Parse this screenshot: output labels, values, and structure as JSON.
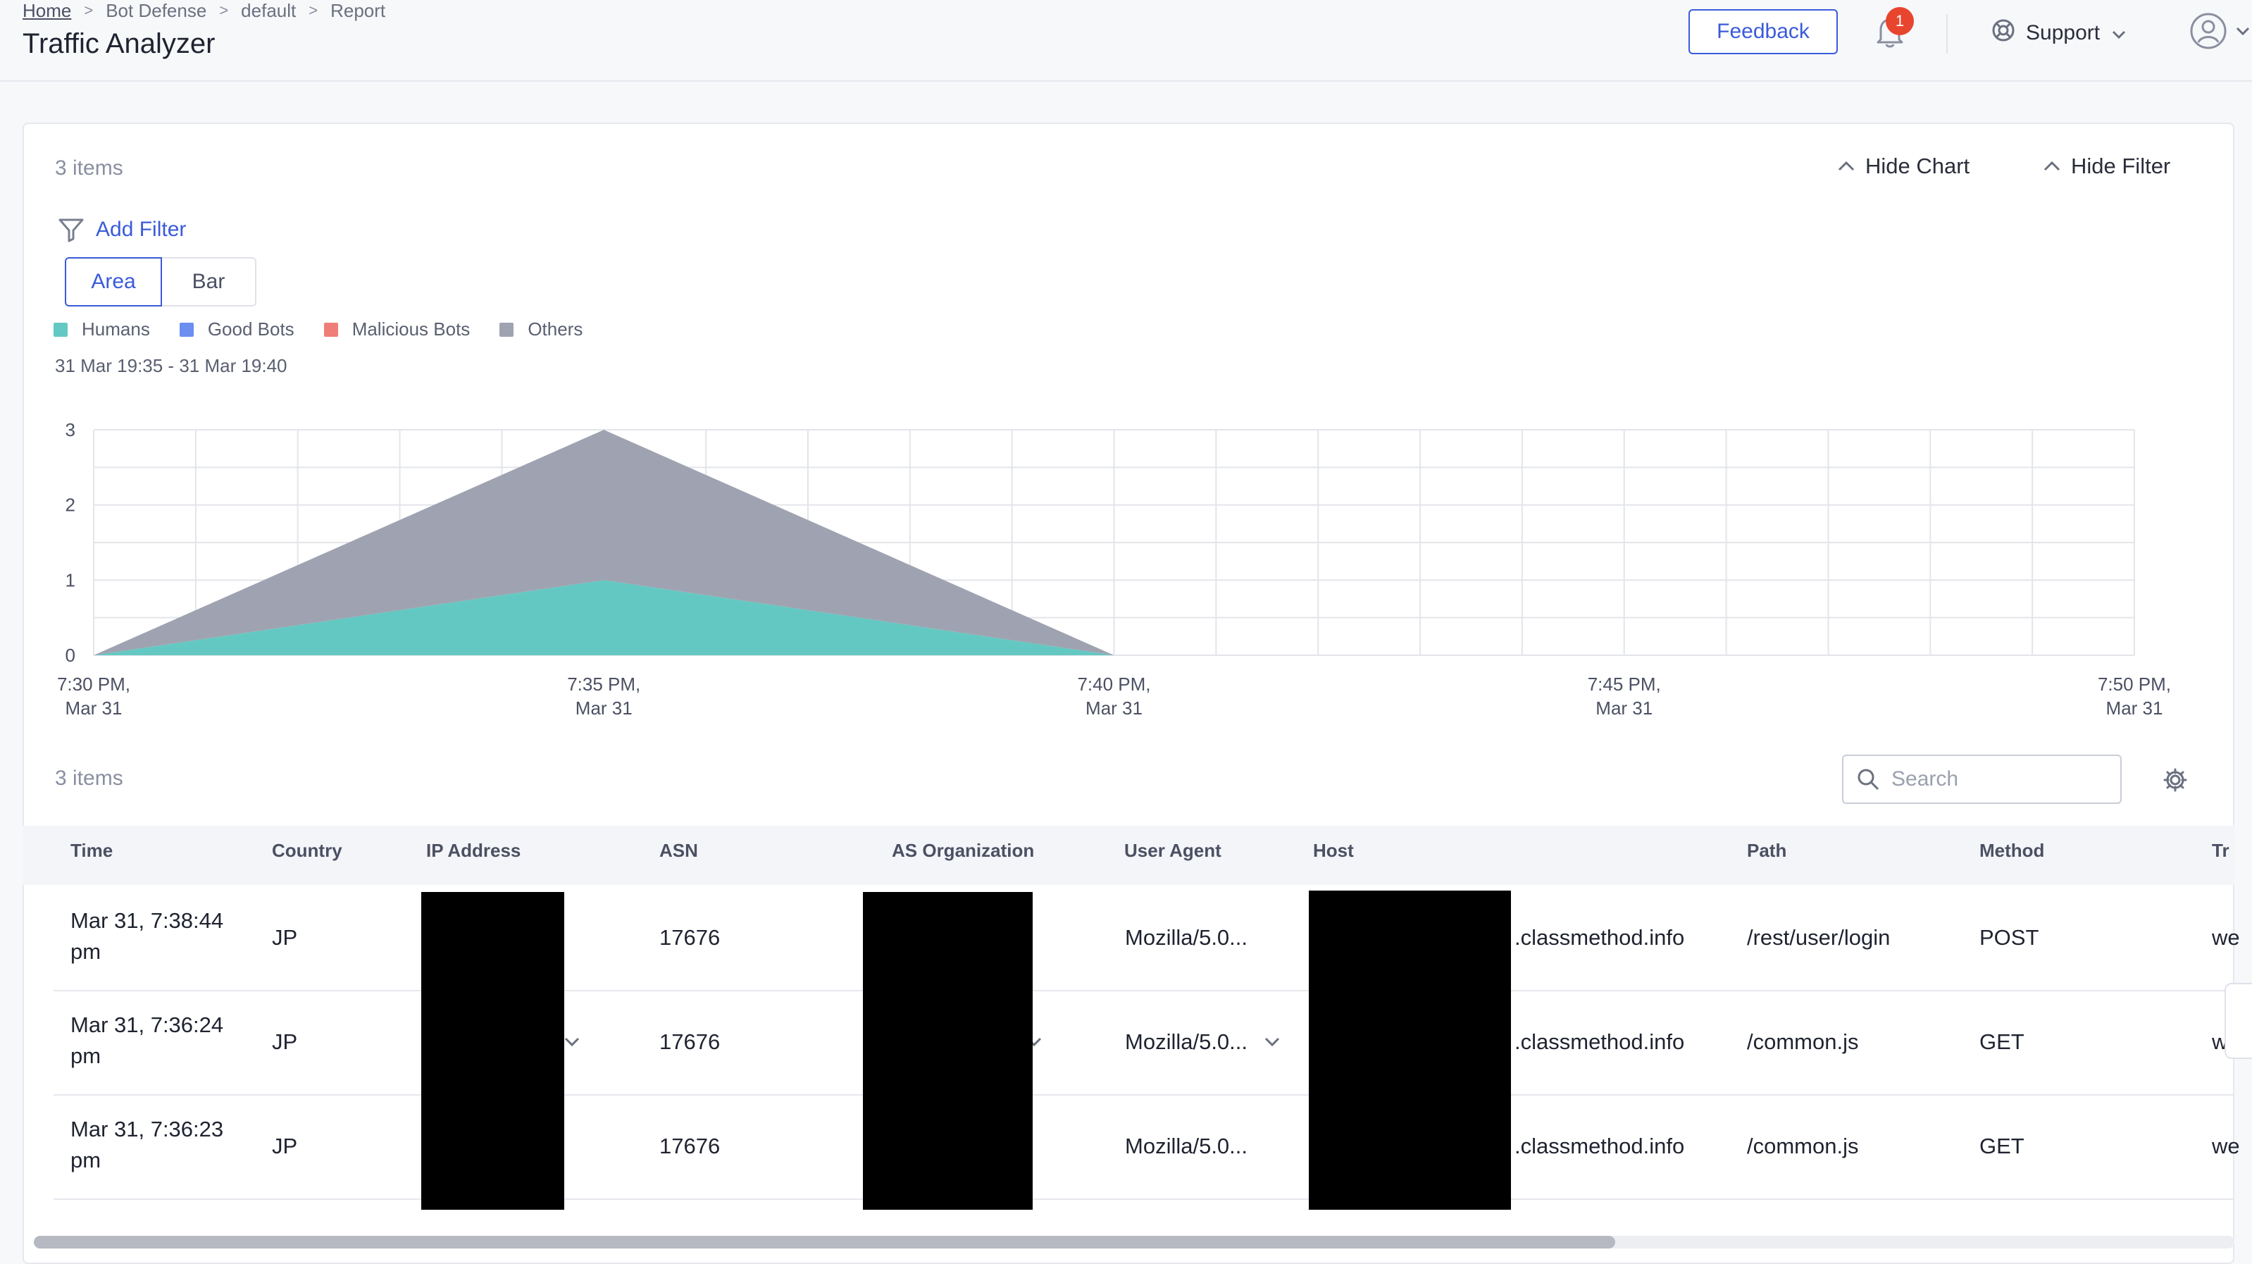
{
  "breadcrumb": [
    "Home",
    "Bot Defense",
    "default",
    "Report"
  ],
  "page_title": "Traffic Analyzer",
  "header": {
    "feedback_label": "Feedback",
    "notification_count": "1",
    "support_label": "Support"
  },
  "panel": {
    "items_count_top": "3 items",
    "hide_chart_label": "Hide Chart",
    "hide_filter_label": "Hide Filter",
    "add_filter_label": "Add Filter",
    "view_toggle": [
      "Area",
      "Bar"
    ],
    "view_selected": "Area",
    "date_range": "31 Mar 19:35 - 31 Mar 19:40"
  },
  "chart_data": {
    "type": "area",
    "stacked": true,
    "x": [
      "7:30 PM",
      "7:35 PM",
      "7:40 PM",
      "7:45 PM",
      "7:50 PM"
    ],
    "x_tick_labels": [
      [
        "7:30 PM,",
        "Mar 31"
      ],
      [
        "7:35 PM,",
        "Mar 31"
      ],
      [
        "7:40 PM,",
        "Mar 31"
      ],
      [
        "7:45 PM,",
        "Mar 31"
      ],
      [
        "7:50 PM,",
        "Mar 31"
      ]
    ],
    "series": [
      {
        "name": "Humans",
        "color": "#64c8c2",
        "values": [
          0,
          1,
          0,
          0,
          0
        ]
      },
      {
        "name": "Good Bots",
        "color": "#6b8ef0",
        "values": [
          0,
          0,
          0,
          0,
          0
        ]
      },
      {
        "name": "Malicious Bots",
        "color": "#ef7e78",
        "values": [
          0,
          0,
          0,
          0,
          0
        ]
      },
      {
        "name": "Others",
        "color": "#9fa3b1",
        "values": [
          0,
          2,
          0,
          0,
          0
        ]
      }
    ],
    "ylim": [
      0,
      3
    ],
    "y_ticks": [
      "0",
      "1",
      "2",
      "3"
    ],
    "grid": true,
    "legend_position": "top-left"
  },
  "table": {
    "items_count": "3 items",
    "search_placeholder": "Search",
    "columns": [
      "Time",
      "Country",
      "IP Address",
      "ASN",
      "AS Organization",
      "User Agent",
      "Host",
      "Path",
      "Method",
      "Tr"
    ],
    "rows": [
      {
        "time_line1": "Mar 31, 7:38:44",
        "time_line2": "pm",
        "country": "JP",
        "asn": "17676",
        "user_agent": "Mozilla/5.0...",
        "host": ".classmethod.info",
        "path": "/rest/user/login",
        "method": "POST",
        "tr": "we"
      },
      {
        "time_line1": "Mar 31, 7:36:24",
        "time_line2": "pm",
        "country": "JP",
        "asn": "17676",
        "user_agent": "Mozilla/5.0...",
        "host": ".classmethod.info",
        "path": "/common.js",
        "method": "GET",
        "tr": "w"
      },
      {
        "time_line1": "Mar 31, 7:36:23",
        "time_line2": "pm",
        "country": "JP",
        "asn": "17676",
        "user_agent": "Mozilla/5.0...",
        "host": ".classmethod.info",
        "path": "/common.js",
        "method": "GET",
        "tr": "we"
      }
    ]
  },
  "icons": {
    "bell": "bell-icon",
    "support": "lifebuoy-icon",
    "user": "user-circle-icon",
    "filter": "filter-icon",
    "search": "search-icon",
    "gear": "gear-icon"
  }
}
